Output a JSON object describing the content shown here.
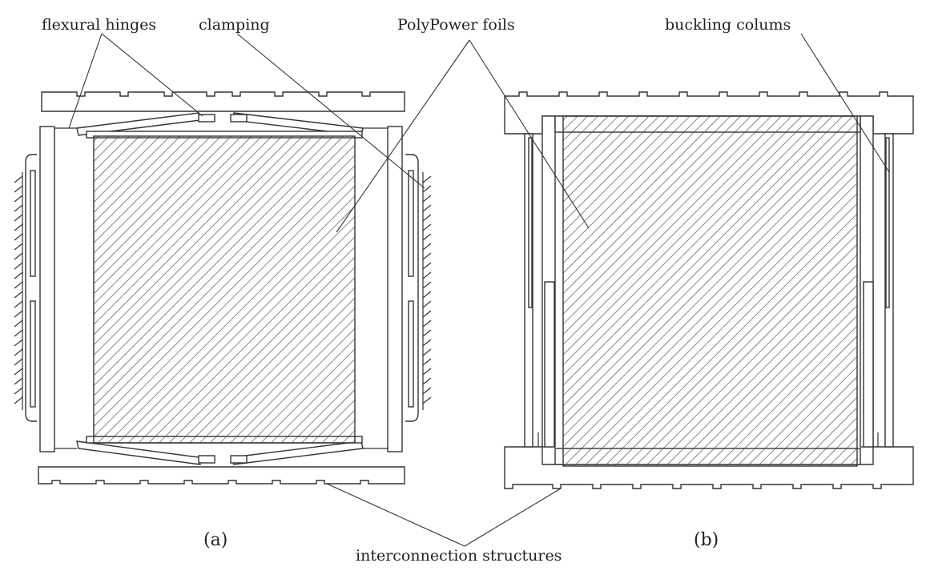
{
  "labels": {
    "flexural_hinges": "flexural hinges",
    "clamping": "clamping",
    "polypower_foils": "PolyPower foils",
    "buckling_colums": "buckling colums",
    "interconnection_structures": "interconnection structures",
    "panel_a": "(a)",
    "panel_b": "(b)"
  },
  "colors": {
    "line": "#333333",
    "text": "#222222",
    "background": "#ffffff"
  }
}
